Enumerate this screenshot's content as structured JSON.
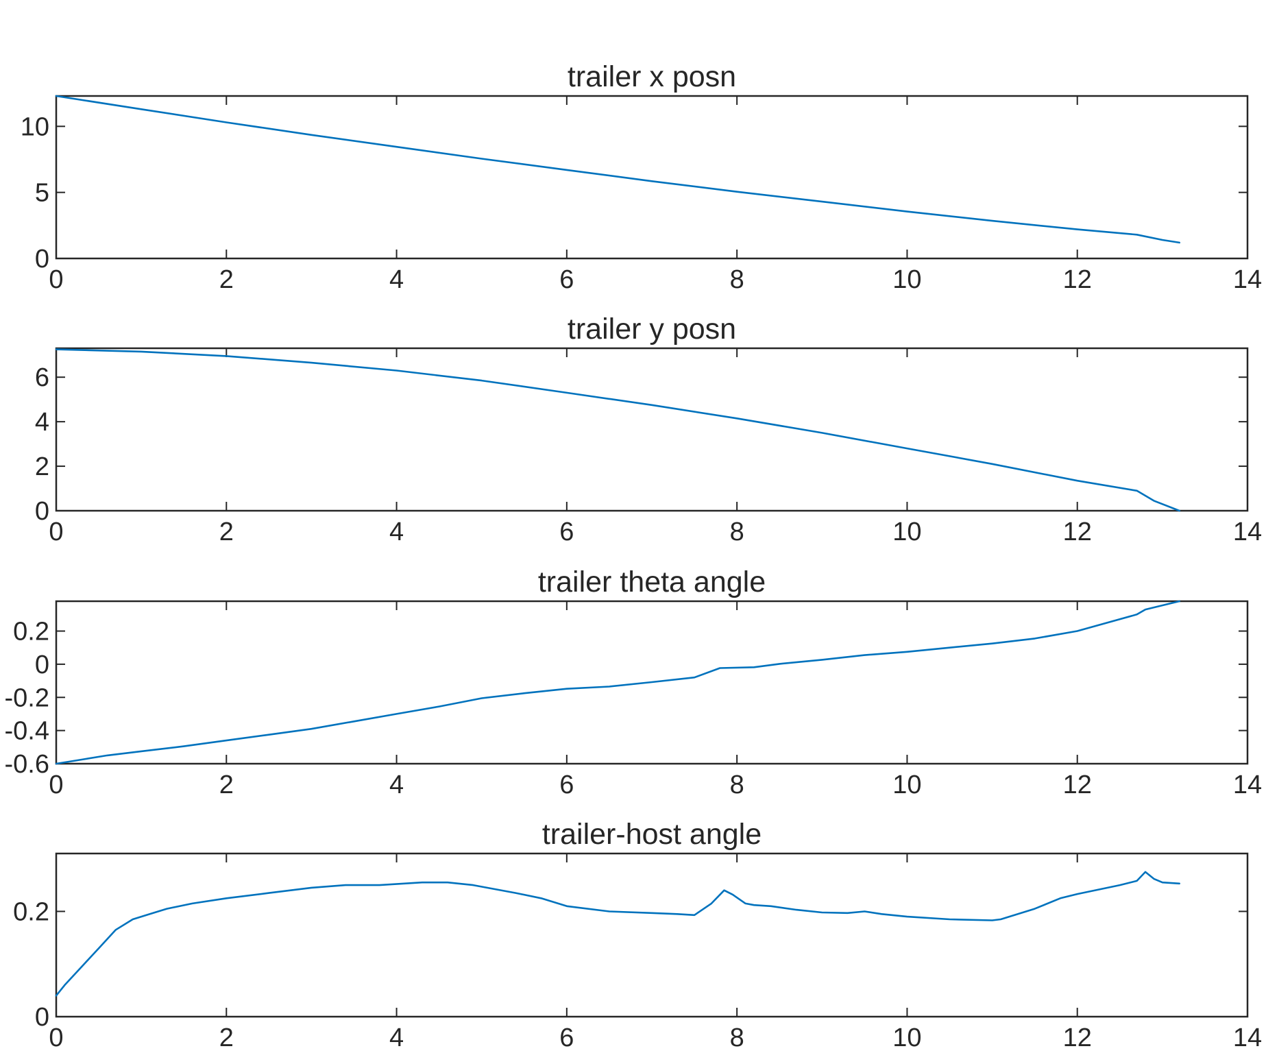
{
  "colors": {
    "series": "#0072BD",
    "axes": "#262626",
    "background": "#ffffff"
  },
  "chart_data": [
    {
      "type": "line",
      "title": "trailer x posn",
      "xlabel": "",
      "ylabel": "",
      "xlim": [
        0,
        14
      ],
      "ylim": [
        0,
        12.3
      ],
      "xticks": [
        0,
        2,
        4,
        6,
        8,
        10,
        12,
        14
      ],
      "yticks": [
        0,
        5,
        10
      ],
      "ytick_labels": [
        "0",
        "5",
        "10"
      ],
      "grid": false,
      "series": [
        {
          "x": [
            0,
            1,
            2,
            3,
            4,
            5,
            6,
            7,
            8,
            9,
            10,
            11,
            12,
            12.7,
            13.0,
            13.2
          ],
          "y": [
            12.3,
            11.3,
            10.3,
            9.35,
            8.45,
            7.55,
            6.7,
            5.85,
            5.05,
            4.3,
            3.55,
            2.85,
            2.2,
            1.8,
            1.4,
            1.2
          ]
        }
      ]
    },
    {
      "type": "line",
      "title": "trailer y posn",
      "xlabel": "",
      "ylabel": "",
      "xlim": [
        0,
        14
      ],
      "ylim": [
        0,
        7.3
      ],
      "xticks": [
        0,
        2,
        4,
        6,
        8,
        10,
        12,
        14
      ],
      "yticks": [
        0,
        2,
        4,
        6
      ],
      "ytick_labels": [
        "0",
        "2",
        "4",
        "6"
      ],
      "grid": false,
      "series": [
        {
          "x": [
            0,
            1,
            2,
            3,
            4,
            5,
            6,
            7,
            8,
            9,
            10,
            11,
            12,
            12.7,
            12.9,
            13.2
          ],
          "y": [
            7.25,
            7.15,
            6.95,
            6.65,
            6.3,
            5.85,
            5.3,
            4.75,
            4.15,
            3.5,
            2.8,
            2.1,
            1.35,
            0.9,
            0.45,
            0.0
          ]
        }
      ]
    },
    {
      "type": "line",
      "title": "trailer theta angle",
      "xlabel": "",
      "ylabel": "",
      "xlim": [
        0,
        14
      ],
      "ylim": [
        -0.6,
        0.38
      ],
      "xticks": [
        0,
        2,
        4,
        6,
        8,
        10,
        12,
        14
      ],
      "yticks": [
        -0.6,
        -0.4,
        -0.2,
        0,
        0.2
      ],
      "ytick_labels": [
        "-0.6",
        "-0.4",
        "-0.2",
        "0",
        "0.2"
      ],
      "grid": false,
      "series": [
        {
          "x": [
            0,
            0.3,
            0.6,
            1,
            1.5,
            2,
            2.5,
            3,
            3.5,
            4,
            4.5,
            5,
            5.5,
            6,
            6.5,
            7,
            7.5,
            7.8,
            8.2,
            8.5,
            9,
            9.5,
            10,
            10.5,
            11,
            11.5,
            12,
            12.7,
            12.8,
            13.2
          ],
          "y": [
            -0.6,
            -0.575,
            -0.55,
            -0.525,
            -0.495,
            -0.46,
            -0.425,
            -0.39,
            -0.345,
            -0.3,
            -0.255,
            -0.205,
            -0.175,
            -0.148,
            -0.135,
            -0.108,
            -0.08,
            -0.023,
            -0.018,
            0.002,
            0.027,
            0.055,
            0.075,
            0.1,
            0.125,
            0.155,
            0.2,
            0.3,
            0.33,
            0.38
          ]
        }
      ]
    },
    {
      "type": "line",
      "title": "trailer-host angle",
      "xlabel": "",
      "ylabel": "",
      "xlim": [
        0,
        14
      ],
      "ylim": [
        0,
        0.31
      ],
      "xticks": [
        0,
        2,
        4,
        6,
        8,
        10,
        12,
        14
      ],
      "yticks": [
        0,
        0.2
      ],
      "ytick_labels": [
        "0",
        "0.2"
      ],
      "grid": false,
      "series": [
        {
          "x": [
            0,
            0.1,
            0.3,
            0.5,
            0.7,
            0.9,
            1.1,
            1.3,
            1.6,
            2,
            2.5,
            3,
            3.4,
            3.8,
            4.3,
            4.6,
            4.9,
            5.4,
            5.7,
            6,
            6.5,
            7,
            7.3,
            7.5,
            7.7,
            7.85,
            7.95,
            8.1,
            8.2,
            8.4,
            8.7,
            9,
            9.3,
            9.5,
            9.7,
            10,
            10.5,
            11,
            11.1,
            11.5,
            11.8,
            12,
            12.5,
            12.7,
            12.8,
            12.9,
            13.0,
            13.2
          ],
          "y": [
            0.04,
            0.06,
            0.095,
            0.13,
            0.165,
            0.185,
            0.195,
            0.205,
            0.215,
            0.225,
            0.235,
            0.245,
            0.25,
            0.25,
            0.255,
            0.255,
            0.25,
            0.235,
            0.225,
            0.21,
            0.2,
            0.197,
            0.195,
            0.193,
            0.215,
            0.24,
            0.232,
            0.215,
            0.212,
            0.21,
            0.203,
            0.198,
            0.197,
            0.2,
            0.195,
            0.19,
            0.185,
            0.183,
            0.185,
            0.205,
            0.225,
            0.233,
            0.25,
            0.258,
            0.275,
            0.262,
            0.255,
            0.253
          ]
        }
      ]
    }
  ]
}
